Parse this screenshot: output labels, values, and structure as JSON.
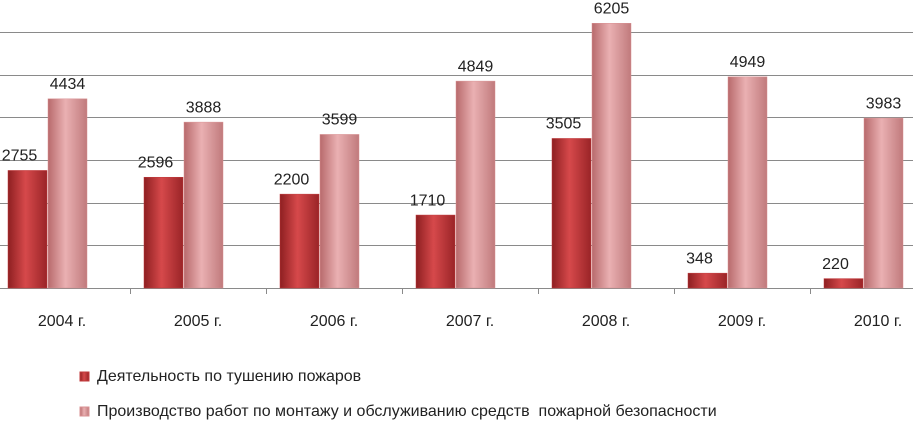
{
  "chart_data": {
    "type": "bar",
    "categories": [
      "2004 г.",
      "2005 г.",
      "2006 г.",
      "2007 г.",
      "2008 г.",
      "2009 г.",
      "2010 г."
    ],
    "series": [
      {
        "name": "Деятельность по тушению пожаров",
        "color": "#c0393b",
        "values": [
          2755,
          2596,
          2200,
          1710,
          3505,
          348,
          220
        ]
      },
      {
        "name": "Производство работ по монтажу и обслуживанию средств  пожарной безопасности",
        "color": "#d99193",
        "values": [
          4434,
          3888,
          3599,
          4849,
          6205,
          4949,
          3983
        ]
      }
    ],
    "ylim": [
      0,
      6000
    ],
    "yticks": [
      0,
      1000,
      2000,
      3000,
      4000,
      5000,
      6000
    ],
    "grid": true
  }
}
